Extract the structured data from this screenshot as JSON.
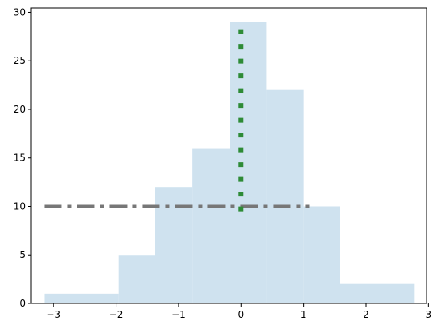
{
  "chart_data": {
    "type": "bar",
    "title": "",
    "xlabel": "",
    "ylabel": "",
    "xlim": [
      -3.36,
      2.97
    ],
    "ylim": [
      0,
      30.45
    ],
    "grid": false,
    "legend": "none",
    "x_ticks": [
      -3,
      -2,
      -1,
      0,
      1,
      2,
      3
    ],
    "y_ticks": [
      0,
      5,
      10,
      15,
      20,
      25,
      30
    ],
    "histogram": {
      "bin_edges": [
        -3.15,
        -1.96,
        -1.37,
        -0.78,
        -0.18,
        0.41,
        1.0,
        1.59,
        2.77
      ],
      "counts": [
        1,
        5,
        12,
        16,
        29,
        22,
        10,
        2
      ],
      "color": "#cfe2ef"
    },
    "reference_lines": [
      {
        "orientation": "horizontal",
        "value": 10,
        "from": -3.15,
        "to": 1.1,
        "style": "dash-dot",
        "color": "#777777"
      },
      {
        "orientation": "vertical",
        "value": 0,
        "from": 9.5,
        "to": 29,
        "style": "dotted",
        "color": "#2e8b36"
      }
    ]
  }
}
